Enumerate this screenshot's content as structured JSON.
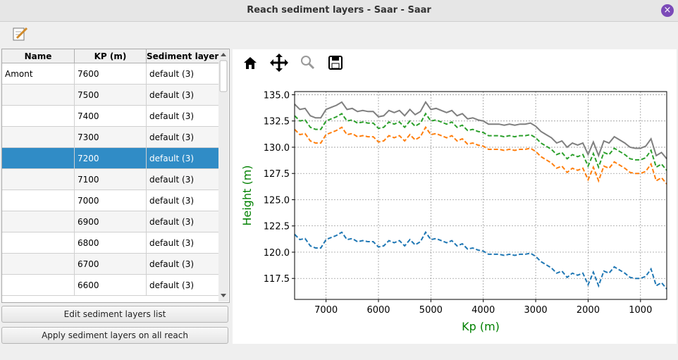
{
  "window": {
    "title": "Reach sediment layers - Saar - Saar"
  },
  "table": {
    "headers": [
      "Name",
      "KP (m)",
      "Sediment layers"
    ],
    "rows": [
      {
        "name": "Amont",
        "kp": 7600,
        "layers": "default (3)"
      },
      {
        "kp": 7500,
        "layers": "default (3)"
      },
      {
        "kp": 7400,
        "layers": "default (3)"
      },
      {
        "kp": 7300,
        "layers": "default (3)"
      },
      {
        "kp": 7200,
        "layers": "default (3)",
        "selected": true
      },
      {
        "kp": 7100,
        "layers": "default (3)"
      },
      {
        "kp": 7000,
        "layers": "default (3)"
      },
      {
        "kp": 6900,
        "layers": "default (3)"
      },
      {
        "kp": 6800,
        "layers": "default (3)"
      },
      {
        "kp": 6700,
        "layers": "default (3)"
      },
      {
        "kp": 6600,
        "layers": "default (3)"
      }
    ]
  },
  "buttons": [
    "Edit sediment layers list",
    "Apply sediment layers on all reach"
  ],
  "chart_data": {
    "type": "line",
    "xlabel": "Kp (m)",
    "ylabel": "Height (m)",
    "label_color": "#008000",
    "x": [
      7600,
      7500,
      7400,
      7300,
      7200,
      7100,
      7000,
      6900,
      6800,
      6700,
      6600,
      6500,
      6400,
      6300,
      6200,
      6100,
      6000,
      5900,
      5800,
      5700,
      5600,
      5500,
      5400,
      5300,
      5200,
      5100,
      5000,
      4900,
      4800,
      4700,
      4600,
      4500,
      4400,
      4300,
      4200,
      4100,
      4000,
      3900,
      3800,
      3700,
      3600,
      3500,
      3400,
      3300,
      3200,
      3100,
      3000,
      2900,
      2800,
      2700,
      2600,
      2500,
      2400,
      2300,
      2200,
      2100,
      2000,
      1900,
      1800,
      1700,
      1600,
      1500,
      1400,
      1300,
      1200,
      1100,
      1000,
      900,
      800,
      700,
      600,
      500
    ],
    "xlim": [
      7600,
      500
    ],
    "xticks": [
      7000,
      6000,
      5000,
      4000,
      3000,
      2000,
      1000
    ],
    "ylim": [
      115.5,
      135.3
    ],
    "yticks": [
      117.5,
      {
        "value": 120,
        "label": "120.0"
      },
      122.5,
      {
        "value": 125,
        "label": "125.0"
      },
      127.5,
      {
        "value": 130,
        "label": "130.0"
      },
      132.5,
      {
        "value": 135,
        "label": "135.0"
      }
    ],
    "grid": true,
    "series": [
      {
        "color": "#1f77b4",
        "dashed": true,
        "values": [
          121.7,
          121.2,
          121.3,
          120.6,
          120.4,
          120.4,
          121.2,
          121.4,
          121.6,
          121.9,
          121.2,
          121.3,
          121.0,
          121.1,
          121.0,
          121.0,
          120.5,
          120.6,
          121.1,
          120.9,
          121.1,
          120.6,
          121.2,
          120.7,
          121.0,
          121.9,
          121.2,
          121.3,
          121.1,
          120.9,
          121.1,
          120.6,
          120.8,
          120.3,
          120.4,
          120.2,
          120.1,
          119.8,
          119.8,
          119.8,
          119.7,
          119.8,
          119.7,
          119.8,
          119.8,
          119.9,
          119.6,
          119.1,
          118.8,
          118.5,
          118.0,
          118.2,
          117.6,
          118.0,
          117.8,
          118.0,
          116.9,
          118.1,
          116.8,
          118.2,
          118.0,
          118.6,
          118.3,
          118.0,
          117.6,
          117.5,
          117.5,
          117.7,
          118.4,
          116.8,
          117.1,
          116.5
        ]
      },
      {
        "color": "#ff7f0e",
        "dashed": true,
        "values": [
          131.7,
          131.2,
          131.3,
          130.6,
          130.4,
          130.4,
          131.2,
          131.4,
          131.6,
          131.9,
          131.2,
          131.3,
          131.0,
          131.1,
          131.0,
          131.0,
          130.5,
          130.6,
          131.1,
          130.9,
          131.1,
          130.6,
          131.2,
          130.7,
          131.0,
          131.9,
          131.2,
          131.3,
          131.1,
          130.9,
          131.1,
          130.6,
          130.8,
          130.3,
          130.4,
          130.2,
          130.1,
          129.8,
          129.8,
          129.8,
          129.7,
          129.8,
          129.7,
          129.8,
          129.8,
          129.9,
          129.6,
          129.1,
          128.8,
          128.5,
          128.0,
          128.2,
          127.6,
          128.0,
          127.8,
          128.0,
          126.9,
          128.1,
          126.8,
          128.2,
          128.0,
          128.6,
          128.3,
          128.0,
          127.6,
          127.5,
          127.5,
          127.7,
          128.4,
          126.8,
          127.1,
          126.5
        ]
      },
      {
        "color": "#2ca02c",
        "dashed": true,
        "values": [
          133.0,
          132.5,
          132.6,
          131.9,
          131.7,
          131.7,
          132.5,
          132.7,
          132.9,
          133.2,
          132.5,
          132.6,
          132.3,
          132.4,
          132.3,
          132.3,
          131.8,
          131.9,
          132.4,
          132.2,
          132.4,
          131.9,
          132.5,
          132.0,
          132.3,
          133.2,
          132.5,
          132.6,
          132.4,
          132.2,
          132.4,
          131.9,
          132.1,
          131.6,
          131.7,
          131.5,
          131.4,
          131.1,
          131.1,
          131.1,
          131.0,
          131.1,
          131.0,
          131.1,
          131.1,
          131.2,
          130.9,
          130.4,
          130.1,
          129.8,
          129.3,
          129.5,
          128.9,
          129.3,
          129.1,
          129.3,
          128.2,
          129.4,
          128.1,
          129.5,
          129.3,
          129.9,
          129.6,
          129.3,
          128.9,
          128.8,
          128.8,
          129.0,
          129.7,
          128.1,
          128.4,
          127.8
        ]
      },
      {
        "color": "#7f7f7f",
        "dashed": false,
        "values": [
          134.1,
          133.6,
          133.7,
          133.0,
          132.8,
          132.8,
          133.6,
          133.8,
          134.0,
          134.3,
          133.6,
          133.7,
          133.4,
          133.5,
          133.4,
          133.4,
          132.9,
          133.0,
          133.5,
          133.3,
          133.5,
          133.0,
          133.6,
          133.1,
          133.4,
          134.3,
          133.6,
          133.7,
          133.5,
          133.3,
          133.5,
          133.0,
          133.2,
          132.7,
          132.8,
          132.6,
          132.5,
          132.2,
          132.2,
          132.2,
          132.1,
          132.2,
          132.1,
          132.2,
          132.2,
          132.3,
          132.0,
          131.5,
          131.2,
          130.9,
          130.4,
          130.6,
          130.0,
          130.4,
          130.2,
          130.4,
          129.3,
          130.5,
          129.2,
          130.6,
          130.4,
          131.0,
          130.7,
          130.4,
          130.0,
          129.9,
          129.9,
          130.1,
          130.8,
          129.2,
          129.5,
          128.9
        ]
      }
    ]
  }
}
